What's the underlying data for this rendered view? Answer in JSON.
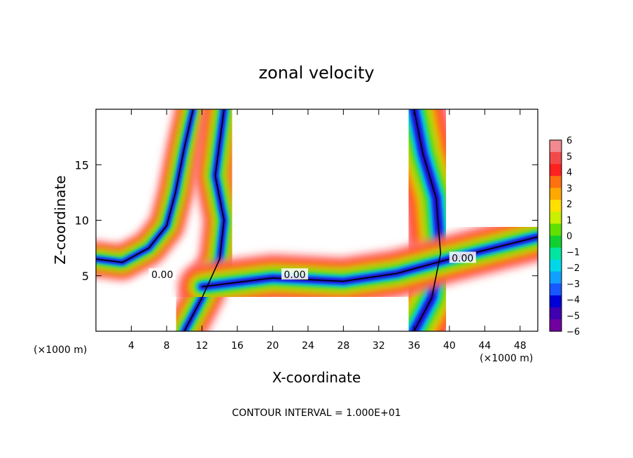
{
  "chart_data": {
    "type": "heatmap",
    "title": "zonal velocity",
    "xlabel": "X-coordinate",
    "ylabel": "Z-coordinate",
    "x_unit_left": "(×1000 m)",
    "x_unit_right": "(×1000 m)",
    "footer": "CONTOUR INTERVAL = 1.000E+01",
    "xlim": [
      0,
      50
    ],
    "ylim": [
      0,
      20
    ],
    "x_ticks": [
      4,
      8,
      12,
      16,
      20,
      24,
      28,
      32,
      36,
      40,
      44,
      48
    ],
    "x_tick_labels": [
      "4",
      "8",
      "12",
      "16",
      "20",
      "24",
      "28",
      "32",
      "36",
      "40",
      "44",
      "48"
    ],
    "y_ticks": [
      5,
      10,
      15
    ],
    "y_tick_labels": [
      "5",
      "10",
      "15"
    ],
    "contour_labels": [
      {
        "text": "0.00",
        "x": 7.5,
        "z": 5.1
      },
      {
        "text": "0.00",
        "x": 22.5,
        "z": 5.1
      },
      {
        "text": "0.00",
        "x": 41.5,
        "z": 6.6
      }
    ],
    "colorbar": {
      "min": -6,
      "max": 6,
      "labels": [
        "6",
        "5",
        "4",
        "3",
        "2",
        "1",
        "0",
        "−1",
        "−2",
        "−3",
        "−4",
        "−5",
        "−6"
      ],
      "colors": [
        "#f08a90",
        "#f24a4a",
        "#ff2020",
        "#ff7010",
        "#ffa800",
        "#ffe000",
        "#c8f000",
        "#60e000",
        "#10d030",
        "#00e6a0",
        "#00d8e8",
        "#10a0ff",
        "#1858ff",
        "#0000d8",
        "#4000b0",
        "#7000a0"
      ]
    },
    "features": [
      {
        "name": "left rising band",
        "path": [
          [
            0.0,
            6.5
          ],
          [
            3,
            6.2
          ],
          [
            6,
            7.5
          ],
          [
            8,
            9.5
          ],
          [
            9,
            12.5
          ],
          [
            10,
            16.5
          ],
          [
            11,
            20
          ]
        ],
        "width": 2.6
      },
      {
        "name": "central rising band",
        "path": [
          [
            10,
            0
          ],
          [
            12,
            3
          ],
          [
            14,
            6.5
          ],
          [
            14.5,
            10
          ],
          [
            13.5,
            14
          ],
          [
            14.5,
            20
          ]
        ],
        "width": 3.0
      },
      {
        "name": "right rising band",
        "path": [
          [
            36,
            0
          ],
          [
            38,
            3
          ],
          [
            39,
            7
          ],
          [
            38.5,
            12
          ],
          [
            37,
            16
          ],
          [
            36,
            20
          ]
        ],
        "width": 5.0
      },
      {
        "name": "lower horizontal shear layer",
        "path": [
          [
            12,
            4.0
          ],
          [
            20,
            4.8
          ],
          [
            28,
            4.5
          ],
          [
            34,
            5.2
          ],
          [
            40,
            6.5
          ],
          [
            45,
            7.5
          ],
          [
            50,
            8.5
          ]
        ],
        "width": 3.5
      }
    ]
  }
}
